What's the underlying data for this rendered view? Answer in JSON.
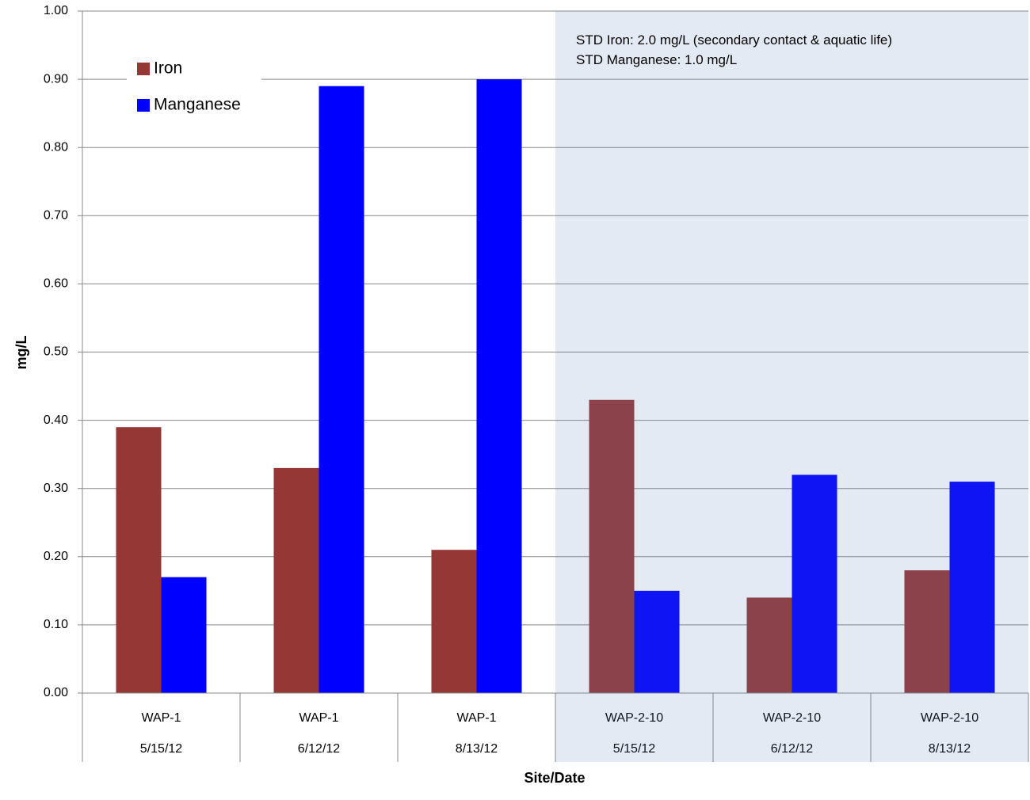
{
  "chart_data": {
    "type": "bar",
    "x_label": "Site/Date",
    "y_label": "mg/L",
    "categories": [
      [
        "WAP-1",
        "5/15/12"
      ],
      [
        "WAP-1",
        "6/12/12"
      ],
      [
        "WAP-1",
        "8/13/12"
      ],
      [
        "WAP-2-10",
        "5/15/12"
      ],
      [
        "WAP-2-10",
        "6/12/12"
      ],
      [
        "WAP-2-10",
        "8/13/12"
      ]
    ],
    "series": [
      {
        "name": "Iron",
        "color": "#953735",
        "values": [
          0.39,
          0.33,
          0.21,
          0.43,
          0.14,
          0.18
        ]
      },
      {
        "name": "Manganese",
        "color": "#0000ff",
        "values": [
          0.17,
          0.89,
          0.9,
          0.15,
          0.32,
          0.31
        ]
      }
    ],
    "annotation": [
      "STD Iron: 2.0 mg/L (secondary contact & aquatic life)",
      "STD Manganese: 1.0 mg/L"
    ],
    "ylim": [
      0,
      1
    ],
    "yticks": [
      {
        "value": 0,
        "label": "0.00"
      },
      {
        "value": 0.1,
        "label": "0.10"
      },
      {
        "value": 0.2,
        "label": "0.20"
      },
      {
        "value": 0.3,
        "label": "0.30"
      },
      {
        "value": 0.4,
        "label": "0.40"
      },
      {
        "value": 0.5,
        "label": "0.50"
      },
      {
        "value": 0.6,
        "label": "0.60"
      },
      {
        "value": 0.7,
        "label": "0.70"
      },
      {
        "value": 0.8,
        "label": "0.80"
      },
      {
        "value": 0.9,
        "label": "0.90"
      },
      {
        "value": 1,
        "label": "1.00"
      }
    ],
    "grid": true,
    "legend": "top-left"
  }
}
